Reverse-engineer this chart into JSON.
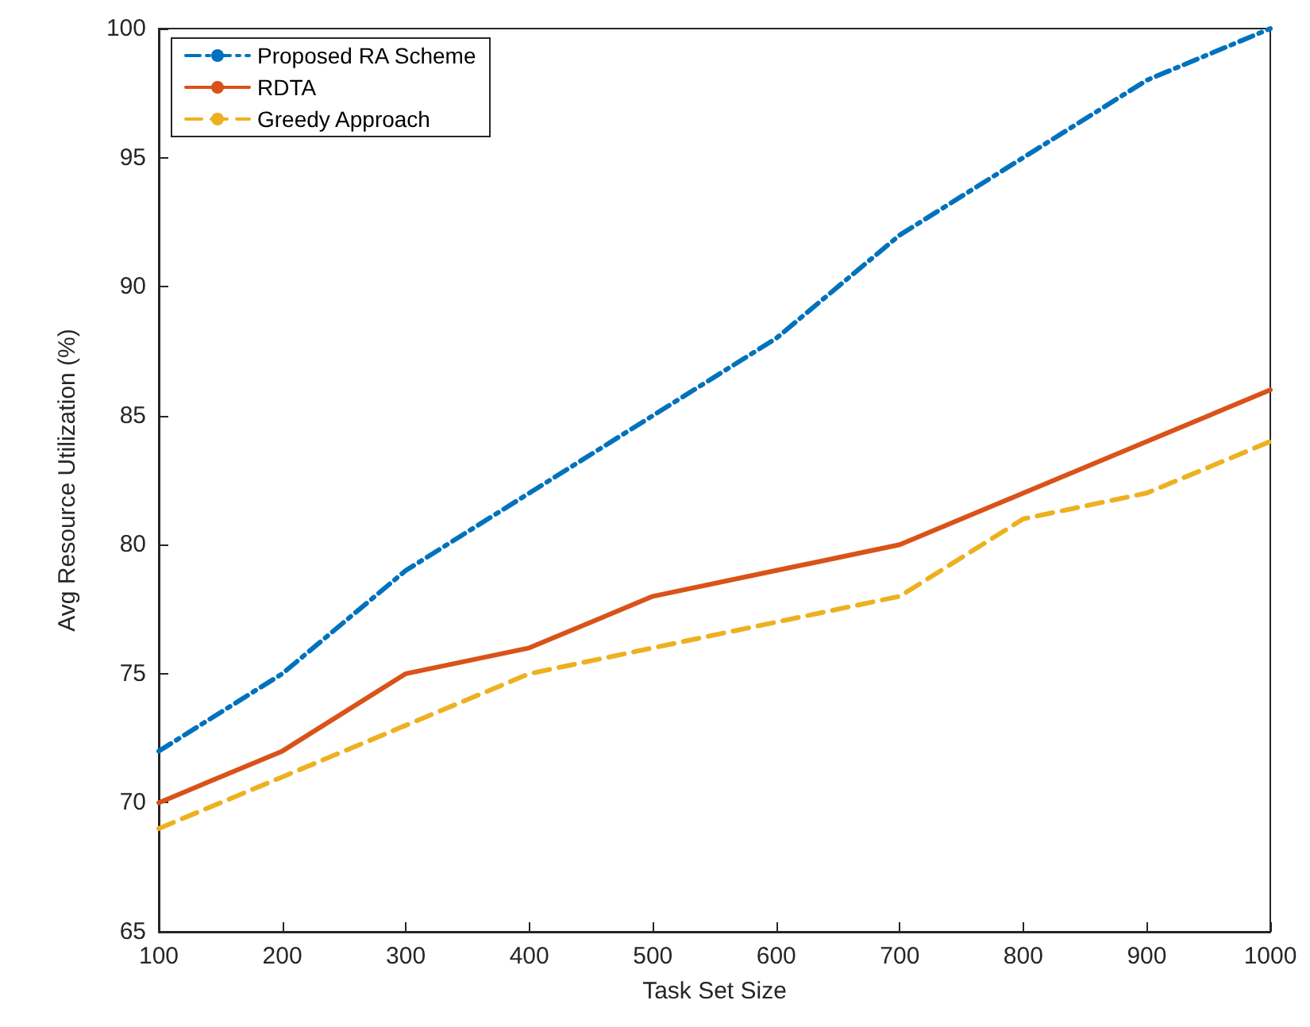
{
  "chart_data": {
    "type": "line",
    "xlabel": "Task Set Size",
    "ylabel": "Avg Resource Utilization (%)",
    "x": [
      100,
      200,
      300,
      400,
      500,
      600,
      700,
      800,
      900,
      1000
    ],
    "series": [
      {
        "name": "Proposed RA Scheme",
        "color": "#0072bd",
        "line_style": "dashed",
        "values": [
          72,
          75,
          79,
          82,
          85,
          88,
          92,
          95,
          98,
          100
        ]
      },
      {
        "name": "RDTA",
        "color": "#d95319",
        "line_style": "solid",
        "values": [
          70,
          72,
          75,
          76,
          78,
          79,
          80,
          82,
          84,
          86
        ]
      },
      {
        "name": "Greedy Approach",
        "color": "#edb120",
        "line_style": "dashed",
        "values": [
          69,
          71,
          73,
          75,
          76,
          77,
          78,
          81,
          82,
          84
        ]
      }
    ],
    "xlim": [
      100,
      1000
    ],
    "xticks": [
      100,
      200,
      300,
      400,
      500,
      600,
      700,
      800,
      900,
      1000
    ],
    "ylim": [
      65,
      100
    ],
    "yticks": [
      65,
      70,
      75,
      80,
      85,
      90,
      95,
      100
    ],
    "grid": false,
    "legend": "top left",
    "marker": "none"
  }
}
